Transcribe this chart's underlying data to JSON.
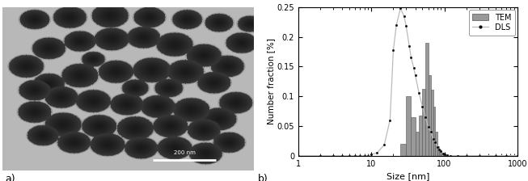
{
  "ylabel": "Number fraction [%]",
  "xlabel": "Size [nm]",
  "ylim": [
    0,
    0.25
  ],
  "xlim_log": [
    1,
    1000
  ],
  "label_a": "a)",
  "label_b": "b)",
  "legend_tem": "TEM",
  "legend_dls": "DLS",
  "bar_color": "#999999",
  "bar_edge_color": "#555555",
  "tem_bar_lefts": [
    20,
    25,
    30,
    35,
    40,
    45,
    50,
    55,
    60,
    65,
    70,
    75,
    80,
    85,
    90,
    95,
    100
  ],
  "tem_bar_widths": [
    5,
    5,
    5,
    5,
    5,
    5,
    5,
    5,
    5,
    5,
    5,
    5,
    5,
    5,
    5,
    5,
    5
  ],
  "tem_bar_heights": [
    0.0,
    0.02,
    0.1,
    0.065,
    0.04,
    0.067,
    0.112,
    0.19,
    0.135,
    0.111,
    0.082,
    0.04,
    0.016,
    0.01,
    0.005,
    0.002,
    0.001
  ],
  "dls_x": [
    1,
    2,
    3,
    4,
    5,
    6,
    7,
    8,
    9,
    10,
    12,
    15,
    18,
    20,
    22,
    25,
    28,
    30,
    33,
    35,
    38,
    40,
    45,
    50,
    55,
    60,
    65,
    70,
    75,
    80,
    85,
    90,
    95,
    100,
    110,
    120,
    150,
    200,
    300,
    500,
    700,
    1000
  ],
  "dls_y": [
    0,
    0,
    0,
    0,
    0,
    0,
    0,
    0,
    0,
    0.002,
    0.005,
    0.018,
    0.06,
    0.178,
    0.22,
    0.248,
    0.235,
    0.218,
    0.185,
    0.165,
    0.148,
    0.135,
    0.105,
    0.083,
    0.065,
    0.048,
    0.04,
    0.028,
    0.022,
    0.015,
    0.01,
    0.007,
    0.004,
    0.002,
    0.001,
    0.0,
    0.0,
    0.0,
    0.0,
    0.0,
    0.0,
    0.0
  ],
  "yticks": [
    0,
    0.05,
    0.1,
    0.15,
    0.2,
    0.25
  ],
  "xticks_log": [
    1,
    10,
    100,
    1000
  ],
  "circles": [
    [
      38,
      22,
      18
    ],
    [
      80,
      18,
      20
    ],
    [
      128,
      15,
      22
    ],
    [
      175,
      18,
      19
    ],
    [
      220,
      22,
      18
    ],
    [
      258,
      28,
      17
    ],
    [
      285,
      65,
      19
    ],
    [
      268,
      108,
      20
    ],
    [
      240,
      88,
      21
    ],
    [
      205,
      68,
      22
    ],
    [
      168,
      55,
      20
    ],
    [
      130,
      58,
      21
    ],
    [
      92,
      62,
      19
    ],
    [
      55,
      75,
      20
    ],
    [
      28,
      108,
      21
    ],
    [
      55,
      140,
      19
    ],
    [
      92,
      125,
      22
    ],
    [
      135,
      118,
      21
    ],
    [
      178,
      115,
      23
    ],
    [
      218,
      118,
      22
    ],
    [
      252,
      138,
      20
    ],
    [
      278,
      175,
      20
    ],
    [
      258,
      205,
      21
    ],
    [
      225,
      188,
      22
    ],
    [
      185,
      182,
      21
    ],
    [
      148,
      178,
      20
    ],
    [
      108,
      172,
      21
    ],
    [
      70,
      165,
      20
    ],
    [
      38,
      152,
      19
    ],
    [
      38,
      192,
      20
    ],
    [
      72,
      215,
      22
    ],
    [
      115,
      218,
      21
    ],
    [
      158,
      222,
      22
    ],
    [
      200,
      218,
      21
    ],
    [
      240,
      225,
      20
    ],
    [
      270,
      248,
      19
    ],
    [
      242,
      268,
      20
    ],
    [
      205,
      258,
      21
    ],
    [
      165,
      258,
      20
    ],
    [
      125,
      252,
      21
    ],
    [
      85,
      248,
      20
    ],
    [
      48,
      235,
      19
    ],
    [
      158,
      148,
      16
    ],
    [
      198,
      148,
      17
    ],
    [
      108,
      95,
      14
    ],
    [
      295,
      30,
      15
    ]
  ],
  "bg_gray": 0.72,
  "circle_dark": 0.1,
  "circle_rim": 0.22,
  "img_size": 300
}
